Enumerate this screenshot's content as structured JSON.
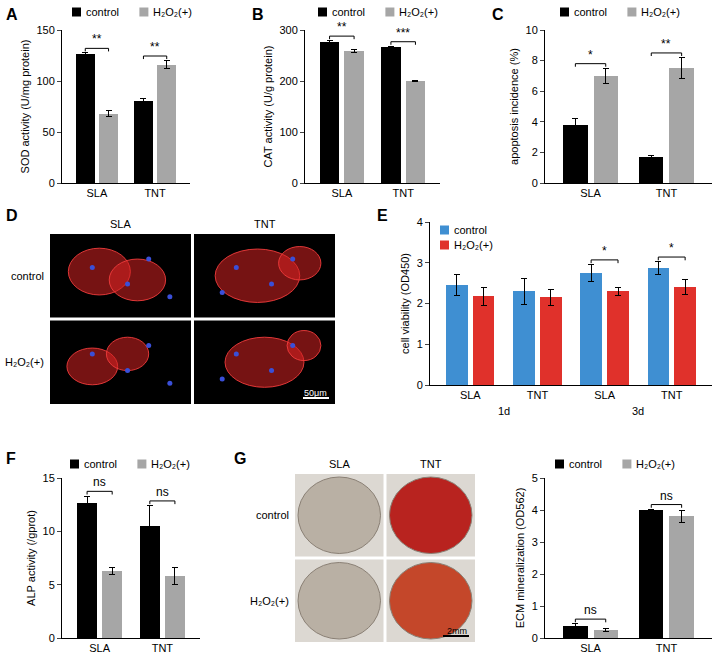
{
  "chart_data": [
    {
      "panel": "A",
      "type": "bar",
      "categories": [
        "SLA",
        "TNT"
      ],
      "ylabel": "SOD activity (U/mg protein)",
      "ylim": [
        0,
        150
      ],
      "yticks": [
        0,
        50,
        100,
        150
      ],
      "legend": "top",
      "series": [
        {
          "name": "control",
          "color": "#000000",
          "values": [
            126,
            80
          ],
          "errors": [
            1.5,
            3
          ]
        },
        {
          "name": "H₂O₂(+)",
          "color": "#a6a6a6",
          "values": [
            68,
            116
          ],
          "errors": [
            3,
            4
          ]
        }
      ],
      "significance": [
        "**",
        "**"
      ]
    },
    {
      "panel": "B",
      "type": "bar",
      "categories": [
        "SLA",
        "TNT"
      ],
      "ylabel": "CAT activity (U/g protein)",
      "ylim": [
        0,
        300
      ],
      "yticks": [
        0,
        100,
        200,
        300
      ],
      "legend": "top",
      "series": [
        {
          "name": "control",
          "color": "#000000",
          "values": [
            277,
            266
          ],
          "errors": [
            2,
            2
          ]
        },
        {
          "name": "H₂O₂(+)",
          "color": "#a6a6a6",
          "values": [
            258,
            200
          ],
          "errors": [
            3,
            1
          ]
        }
      ],
      "significance": [
        "**",
        "***"
      ]
    },
    {
      "panel": "C",
      "type": "bar",
      "categories": [
        "SLA",
        "TNT"
      ],
      "ylabel": "apoptosis incidence (%)",
      "ylim": [
        0,
        10
      ],
      "yticks": [
        0,
        2,
        4,
        6,
        8,
        10
      ],
      "legend": "top",
      "series": [
        {
          "name": "control",
          "color": "#000000",
          "values": [
            3.8,
            1.7
          ],
          "errors": [
            0.4,
            0.1
          ]
        },
        {
          "name": "H₂O₂(+)",
          "color": "#a6a6a6",
          "values": [
            7.0,
            7.5
          ],
          "errors": [
            0.5,
            0.7
          ]
        }
      ],
      "significance": [
        "*",
        "**"
      ]
    },
    {
      "panel": "E",
      "type": "bar",
      "categories": [
        "SLA",
        "TNT",
        "SLA",
        "TNT"
      ],
      "ylabel": "cell viability (OD450)",
      "x_groups": [
        {
          "label": "1d",
          "members": [
            0,
            1
          ]
        },
        {
          "label": "3d",
          "members": [
            2,
            3
          ]
        }
      ],
      "ylim": [
        0,
        4
      ],
      "yticks": [
        0,
        1,
        2,
        3,
        4
      ],
      "legend": "top left",
      "series": [
        {
          "name": "control",
          "color": "#3f8fd2",
          "values": [
            2.45,
            2.3,
            2.75,
            2.87
          ],
          "errors": [
            0.25,
            0.32,
            0.2,
            0.15
          ]
        },
        {
          "name": "H₂O₂(+)",
          "color": "#e0312b",
          "values": [
            2.18,
            2.15,
            2.3,
            2.4
          ],
          "errors": [
            0.22,
            0.2,
            0.1,
            0.18
          ]
        }
      ],
      "significance": [
        null,
        null,
        "*",
        "*"
      ]
    },
    {
      "panel": "F",
      "type": "bar",
      "categories": [
        "SLA",
        "TNT"
      ],
      "ylabel": "ALP activity (/gprot)",
      "ylim": [
        0,
        15
      ],
      "yticks": [
        0,
        5,
        10,
        15
      ],
      "legend": "top",
      "series": [
        {
          "name": "control",
          "color": "#000000",
          "values": [
            12.7,
            10.5
          ],
          "errors": [
            0.6,
            1.9
          ]
        },
        {
          "name": "H₂O₂(+)",
          "color": "#a6a6a6",
          "values": [
            6.3,
            5.8
          ],
          "errors": [
            0.3,
            0.8
          ]
        }
      ],
      "significance": [
        "ns",
        "ns"
      ]
    },
    {
      "panel": "G",
      "type": "bar",
      "categories": [
        "SLA",
        "TNT"
      ],
      "ylabel": "ECM mineralization (OD562)",
      "ylim": [
        0,
        5
      ],
      "yticks": [
        0,
        1,
        2,
        3,
        4,
        5
      ],
      "legend": "top",
      "series": [
        {
          "name": "control",
          "color": "#000000",
          "values": [
            0.38,
            4.0
          ],
          "errors": [
            0.06,
            0.02
          ]
        },
        {
          "name": "H₂O₂(+)",
          "color": "#a6a6a6",
          "values": [
            0.25,
            3.8
          ],
          "errors": [
            0.05,
            0.2
          ]
        }
      ],
      "significance": [
        "ns",
        "ns"
      ]
    }
  ],
  "image_panels": [
    {
      "panel": "D",
      "columns": [
        "SLA",
        "TNT"
      ],
      "rows": [
        "control",
        "H₂O₂(+)"
      ],
      "scale_bar": "50μm"
    },
    {
      "panel": "G",
      "columns": [
        "SLA",
        "TNT"
      ],
      "rows": [
        "control",
        "H₂O₂(+)"
      ],
      "scale_bar": "2mm"
    }
  ]
}
